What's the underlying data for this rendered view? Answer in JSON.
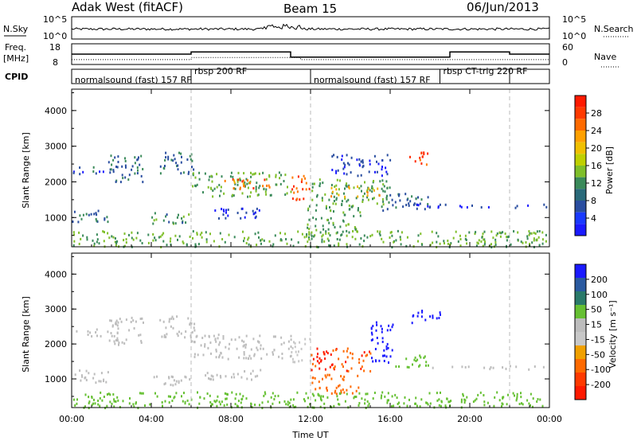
{
  "header": {
    "station": "Adak West (fitACF)",
    "beam": "Beam 15",
    "date": "06/Jun/2013"
  },
  "nsky_panel": {
    "left_label": "N.Sky",
    "right_label": "N.Search",
    "left_ticks": [
      "10^5",
      "10^0"
    ],
    "right_ticks": [
      "10^5",
      "10^0"
    ]
  },
  "freq_panel": {
    "left_label_1": "Freq.",
    "left_label_2": "[MHz]",
    "left_ticks": [
      "18",
      "8"
    ],
    "right_label": "Nave",
    "right_ticks": [
      "60",
      "0"
    ],
    "freq_steps": [
      {
        "t0": 0,
        "t1": 6,
        "v": 13.0
      },
      {
        "t0": 6,
        "t1": 11,
        "v": 14.5
      },
      {
        "t0": 11,
        "t1": 19,
        "v": 11.0
      },
      {
        "t0": 19,
        "t1": 22,
        "v": 14.5
      },
      {
        "t0": 22,
        "t1": 24,
        "v": 13.0
      }
    ],
    "nave_steps": [
      {
        "t0": 0,
        "t1": 6,
        "v": 14
      },
      {
        "t0": 6,
        "t1": 11.5,
        "v": 20
      },
      {
        "t0": 11.5,
        "t1": 24,
        "v": 14
      }
    ]
  },
  "cpid": {
    "label": "CPID",
    "segments": [
      {
        "t0": 0,
        "t1": 6,
        "text": "normalsound (fast) 157 RF"
      },
      {
        "t0": 6,
        "t1": 12,
        "text": "rbsp 200 RF"
      },
      {
        "t0": 12,
        "t1": 18.5,
        "text": "normalsound (fast) 157 RF"
      },
      {
        "t0": 18.5,
        "t1": 22,
        "text": "rbsp CT-trig 220 RF"
      }
    ]
  },
  "xaxis": {
    "ticks": [
      "00:00",
      "04:00",
      "08:00",
      "12:00",
      "16:00",
      "20:00",
      "00:00"
    ],
    "label": "Time UT"
  },
  "power_panel": {
    "ylabel": "Slant Range [km]",
    "yticks": [
      "4000",
      "3000",
      "2000",
      "1000"
    ],
    "colorbar_label": "Power [dB]",
    "colorbar_ticks": [
      "28",
      "24",
      "20",
      "16",
      "12",
      "8",
      "4"
    ]
  },
  "velocity_panel": {
    "ylabel": "Slant Range [km]",
    "yticks": [
      "4000",
      "3000",
      "2000",
      "1000"
    ],
    "colorbar_label": "Velocity [m s⁻¹]",
    "colorbar_ticks": [
      "200",
      "100",
      "50",
      "15",
      "-15",
      "-50",
      "-100",
      "-200"
    ]
  },
  "chart_data": [
    {
      "type": "heatmap",
      "title": "Power",
      "xlabel": "Time UT",
      "ylabel": "Slant Range [km]",
      "xlim": [
        0,
        24
      ],
      "ylim": [
        180,
        4600
      ],
      "clim": [
        0,
        32
      ],
      "colors": {
        "4": "#1a1aff",
        "8": "#2a4ea0",
        "12": "#3a8a5a",
        "16": "#7fbf2a",
        "20": "#f0b000",
        "24": "#ff7a00",
        "28": "#ff2a00"
      },
      "features": [
        {
          "t0": 0.0,
          "t1": 2.4,
          "r0": 2250,
          "r1": 2450,
          "level": 8
        },
        {
          "t0": 1.8,
          "t1": 3.6,
          "r0": 2000,
          "r1": 2800,
          "level": 10
        },
        {
          "t0": 4.4,
          "t1": 6.2,
          "r0": 2200,
          "r1": 2850,
          "level": 9
        },
        {
          "t0": 0.0,
          "t1": 1.8,
          "r0": 900,
          "r1": 1300,
          "level": 9
        },
        {
          "t0": 4.0,
          "t1": 6.0,
          "r0": 850,
          "r1": 1200,
          "level": 12
        },
        {
          "t0": 6.0,
          "t1": 11.0,
          "r0": 1600,
          "r1": 2300,
          "level": 14
        },
        {
          "t0": 7.5,
          "t1": 10.0,
          "r0": 1800,
          "r1": 2100,
          "level": 24
        },
        {
          "t0": 6.5,
          "t1": 9.5,
          "r0": 1000,
          "r1": 1300,
          "level": 6
        },
        {
          "t0": 11.0,
          "t1": 12.0,
          "r0": 1500,
          "r1": 2200,
          "level": 26
        },
        {
          "t0": 11.8,
          "t1": 14.5,
          "r0": 500,
          "r1": 1400,
          "level": 13
        },
        {
          "t0": 12.0,
          "t1": 16.0,
          "r0": 1400,
          "r1": 2100,
          "level": 13
        },
        {
          "t0": 13.0,
          "t1": 15.5,
          "r0": 1600,
          "r1": 1900,
          "level": 20
        },
        {
          "t0": 15.5,
          "t1": 18.0,
          "r0": 1200,
          "r1": 1700,
          "level": 9
        },
        {
          "t0": 13.0,
          "t1": 16.0,
          "r0": 2200,
          "r1": 2800,
          "level": 6
        },
        {
          "t0": 16.8,
          "t1": 18.0,
          "r0": 2500,
          "r1": 2900,
          "level": 26
        },
        {
          "t0": 16.5,
          "t1": 24.0,
          "r0": 1300,
          "r1": 1400,
          "level": 6
        },
        {
          "t0": 0.0,
          "t1": 24.0,
          "r0": 200,
          "r1": 650,
          "level": 14
        }
      ]
    },
    {
      "type": "heatmap",
      "title": "Velocity",
      "xlabel": "Time UT",
      "ylabel": "Slant Range [km]",
      "xlim": [
        0,
        24
      ],
      "ylim": [
        180,
        4600
      ],
      "clim": [
        -250,
        250
      ],
      "colors": {
        "200": "#1a1aff",
        "100": "#2a5aa0",
        "50": "#66c033",
        "15": "#bdbdbd",
        "-15": "#c8c8c8",
        "-50": "#f0a000",
        "-100": "#ff6a00",
        "-200": "#ff1a00"
      },
      "features": [
        {
          "t0": 0.0,
          "t1": 2.4,
          "r0": 2250,
          "r1": 2450,
          "value": 0
        },
        {
          "t0": 1.8,
          "t1": 3.6,
          "r0": 2000,
          "r1": 2800,
          "value": 0
        },
        {
          "t0": 4.4,
          "t1": 6.2,
          "r0": 2200,
          "r1": 2850,
          "value": 0
        },
        {
          "t0": 0.0,
          "t1": 1.8,
          "r0": 900,
          "r1": 1300,
          "value": 0
        },
        {
          "t0": 4.0,
          "t1": 6.0,
          "r0": 850,
          "r1": 1200,
          "value": 0
        },
        {
          "t0": 6.0,
          "t1": 11.0,
          "r0": 1600,
          "r1": 2300,
          "value": 0
        },
        {
          "t0": 6.5,
          "t1": 9.5,
          "r0": 1000,
          "r1": 1300,
          "value": 0
        },
        {
          "t0": 11.0,
          "t1": 12.0,
          "r0": 1500,
          "r1": 2200,
          "value": -20
        },
        {
          "t0": 12.0,
          "t1": 15.0,
          "r0": 1200,
          "r1": 1900,
          "value": -150
        },
        {
          "t0": 12.0,
          "t1": 14.5,
          "r0": 600,
          "r1": 1150,
          "value": -80
        },
        {
          "t0": 15.0,
          "t1": 16.2,
          "r0": 1500,
          "r1": 2700,
          "value": 180
        },
        {
          "t0": 16.0,
          "t1": 18.0,
          "r0": 1350,
          "r1": 1700,
          "value": 60
        },
        {
          "t0": 17.0,
          "t1": 18.5,
          "r0": 2600,
          "r1": 3000,
          "value": 200
        },
        {
          "t0": 18.0,
          "t1": 24.0,
          "r0": 1300,
          "r1": 1400,
          "value": 0
        },
        {
          "t0": 0.0,
          "t1": 24.0,
          "r0": 200,
          "r1": 650,
          "value": 40
        }
      ]
    }
  ]
}
